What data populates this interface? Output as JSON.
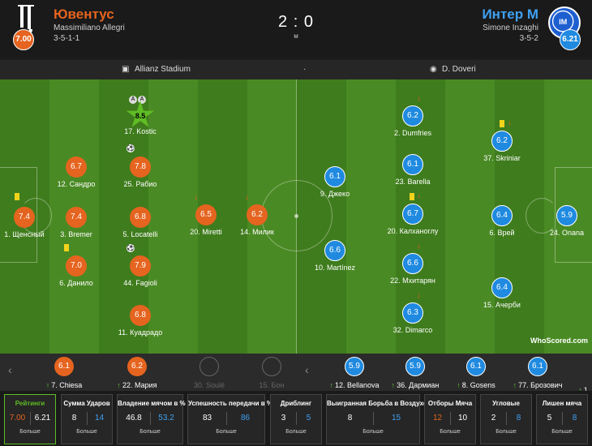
{
  "header": {
    "home": {
      "name": "Ювентус",
      "manager": "Massimiliano Allegri",
      "formation": "3-5-1-1",
      "rating": "7.00",
      "color": "#e5641f"
    },
    "away": {
      "name": "Интер М",
      "manager": "Simone Inzaghi",
      "formation": "3-5-2",
      "rating": "6.21",
      "color": "#3fa0f2"
    },
    "score": "2 : 0",
    "status": "м"
  },
  "venue": {
    "stadium": "Allianz Stadium",
    "separator": "·",
    "referee": "D. Doveri"
  },
  "home_players": [
    {
      "rating": "7.4",
      "name": "1. Щенсный"
    },
    {
      "rating": "6.7",
      "name": "12. Сандро"
    },
    {
      "rating": "7.4",
      "name": "3. Bremer"
    },
    {
      "rating": "7.0",
      "name": "6. Данило"
    },
    {
      "rating": "7.8",
      "name": "25. Рабио"
    },
    {
      "rating": "6.8",
      "name": "5. Locatelli"
    },
    {
      "rating": "7.9",
      "name": "44. Fagioli"
    },
    {
      "rating": "6.8",
      "name": "11. Куадрадо"
    },
    {
      "rating": "8.5",
      "name": "17. Kostic"
    },
    {
      "rating": "6.5",
      "name": "20. Miretti"
    },
    {
      "rating": "6.2",
      "name": "14. Милик"
    }
  ],
  "away_players": [
    {
      "rating": "5.9",
      "name": "24. Onana"
    },
    {
      "rating": "6.2",
      "name": "37. Skriniar"
    },
    {
      "rating": "6.4",
      "name": "6. Врей"
    },
    {
      "rating": "6.4",
      "name": "15. Ачерби"
    },
    {
      "rating": "6.2",
      "name": "2. Dumfries"
    },
    {
      "rating": "6.1",
      "name": "23. Barella"
    },
    {
      "rating": "6.7",
      "name": "20. Калханоглу"
    },
    {
      "rating": "6.6",
      "name": "22. Мхитарян"
    },
    {
      "rating": "6.3",
      "name": "32. Dimarco"
    },
    {
      "rating": "6.1",
      "name": "9. Джеко"
    },
    {
      "rating": "6.6",
      "name": "10. Martínez"
    }
  ],
  "badges": {
    "kostic_a1": "A",
    "kostic_a2": "A"
  },
  "branding": {
    "whoscored": "WhoScored.com"
  },
  "subs": [
    {
      "rating": "6.1",
      "name": "7. Chiesa"
    },
    {
      "rating": "6.2",
      "name": "22. Мария"
    },
    {
      "rating": "",
      "name": "30. Soulé"
    },
    {
      "rating": "",
      "name": "15. Бон"
    },
    {
      "rating": "5.9",
      "name": "12. Bellanova"
    },
    {
      "rating": "5.9",
      "name": "36. Дармиан"
    },
    {
      "rating": "6.1",
      "name": "8. Gosens"
    },
    {
      "rating": "6.1",
      "name": "77. Брозович"
    },
    {
      "rating": "",
      "name": "1"
    }
  ],
  "stats": [
    {
      "title": "Рейтинги",
      "home": "7.00",
      "away": "6.21",
      "more": "Больше"
    },
    {
      "title": "Сумма Ударов",
      "home": "8",
      "away": "14",
      "more": "Больше"
    },
    {
      "title": "Владение мячом в %",
      "home": "46.8",
      "away": "53.2",
      "more": "Больше"
    },
    {
      "title": "Успешность передачи в %",
      "home": "83",
      "away": "86",
      "more": "Больше"
    },
    {
      "title": "Дриблинг",
      "home": "3",
      "away": "5",
      "more": "Больше"
    },
    {
      "title": "Выигранная Борьба в Воздухе",
      "home": "8",
      "away": "15",
      "more": "Больше"
    },
    {
      "title": "Отборы Мяча",
      "home": "12",
      "away": "10",
      "more": "Больше"
    },
    {
      "title": "Угловые",
      "home": "2",
      "away": "8",
      "more": "Больше"
    },
    {
      "title": "Лишен мяча",
      "home": "5",
      "away": "8",
      "more": "Больше"
    }
  ]
}
